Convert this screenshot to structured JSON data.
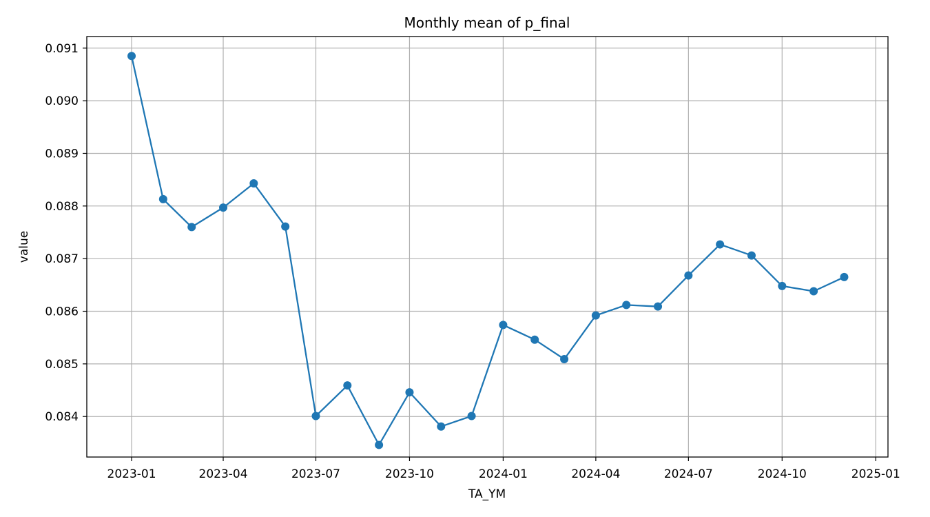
{
  "chart_data": {
    "type": "line",
    "title": "Monthly mean of p_final",
    "xlabel": "TA_YM",
    "ylabel": "value",
    "x": [
      "2023-01",
      "2023-02",
      "2023-03",
      "2023-04",
      "2023-05",
      "2023-06",
      "2023-07",
      "2023-08",
      "2023-09",
      "2023-10",
      "2023-11",
      "2023-12",
      "2024-01",
      "2024-02",
      "2024-03",
      "2024-04",
      "2024-05",
      "2024-06",
      "2024-07",
      "2024-08",
      "2024-09",
      "2024-10",
      "2024-11",
      "2024-12"
    ],
    "series": [
      {
        "values": [
          0.09085,
          0.08813,
          0.0876,
          0.08797,
          0.08843,
          0.08761,
          0.08401,
          0.08459,
          0.08346,
          0.08446,
          0.08381,
          0.08401,
          0.08574,
          0.08546,
          0.08509,
          0.08592,
          0.08612,
          0.08609,
          0.08668,
          0.08727,
          0.08706,
          0.08648,
          0.08638,
          0.08665
        ],
        "color": "#1f77b4",
        "marker": "circle"
      }
    ],
    "xticks": [
      "2023-01",
      "2023-04",
      "2023-07",
      "2023-10",
      "2024-01",
      "2024-04",
      "2024-07",
      "2024-10",
      "2025-01"
    ],
    "xlim": [
      "2022-11-18",
      "2025-01-13"
    ],
    "yticks": [
      "0.084",
      "0.085",
      "0.086",
      "0.087",
      "0.088",
      "0.089",
      "0.090",
      "0.091"
    ],
    "ylim": [
      0.08323,
      0.09122
    ],
    "grid": true
  }
}
